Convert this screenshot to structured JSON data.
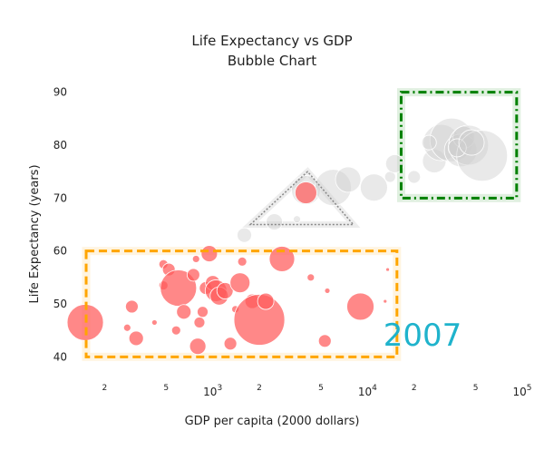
{
  "chart_data": {
    "type": "scatter",
    "title": "Life Expectancy vs GDP",
    "subtitle": "Bubble Chart",
    "xlabel": "GDP per capita (2000 dollars)",
    "ylabel": "Life Expectancy (years)",
    "x_scale": "log",
    "xlim": [
      100,
      100000
    ],
    "ylim": [
      38,
      92
    ],
    "y_ticks": [
      40,
      50,
      60,
      70,
      80,
      90
    ],
    "x_major_ticks": [
      {
        "value": 1000,
        "base": "10",
        "exp": "3"
      },
      {
        "value": 10000,
        "base": "10",
        "exp": "4"
      },
      {
        "value": 100000,
        "base": "10",
        "exp": "5"
      }
    ],
    "x_minor_ticks": [
      {
        "value": 200,
        "label": "2"
      },
      {
        "value": 500,
        "label": "5"
      },
      {
        "value": 2000,
        "label": "2"
      },
      {
        "value": 5000,
        "label": "5"
      },
      {
        "value": 20000,
        "label": "2"
      },
      {
        "value": 50000,
        "label": "5"
      }
    ],
    "annotation": "2007",
    "colors": {
      "highlight": "#ff5a5a",
      "faded": "#cfcfcf",
      "annotation": "#1fb3cc",
      "box_orange": "#ffa500",
      "box_green": "#008000",
      "triangle": "#888888"
    },
    "highlight_regions": [
      {
        "shape": "rect",
        "x": [
          152,
          15500
        ],
        "y": [
          40,
          60
        ],
        "color": "#ffa500",
        "dash": "dash"
      },
      {
        "shape": "rect",
        "x": [
          16500,
          92000
        ],
        "y": [
          70,
          90
        ],
        "color": "#008000",
        "dash": "dashdot"
      },
      {
        "shape": "triangle",
        "x": [
          1750,
          4100,
          8100
        ],
        "y": [
          65,
          75,
          65
        ],
        "color": "#888888",
        "dash": "dot"
      }
    ],
    "series": [
      {
        "group": "highlight",
        "points": [
          {
            "x": 150,
            "y": 46.5,
            "size": 20
          },
          {
            "x": 300,
            "y": 49.5,
            "size": 7
          },
          {
            "x": 320,
            "y": 43.5,
            "size": 8
          },
          {
            "x": 280,
            "y": 45.5,
            "size": 4
          },
          {
            "x": 420,
            "y": 46.5,
            "size": 3
          },
          {
            "x": 480,
            "y": 57.5,
            "size": 5
          },
          {
            "x": 520,
            "y": 56.5,
            "size": 7
          },
          {
            "x": 480,
            "y": 53.5,
            "size": 5
          },
          {
            "x": 600,
            "y": 53,
            "size": 20
          },
          {
            "x": 650,
            "y": 48.5,
            "size": 8
          },
          {
            "x": 580,
            "y": 45,
            "size": 5
          },
          {
            "x": 750,
            "y": 55.5,
            "size": 7
          },
          {
            "x": 780,
            "y": 58.5,
            "size": 4
          },
          {
            "x": 800,
            "y": 42,
            "size": 9
          },
          {
            "x": 820,
            "y": 46.5,
            "size": 6
          },
          {
            "x": 860,
            "y": 48.5,
            "size": 6
          },
          {
            "x": 900,
            "y": 53,
            "size": 7
          },
          {
            "x": 950,
            "y": 59.5,
            "size": 9
          },
          {
            "x": 1000,
            "y": 54,
            "size": 8
          },
          {
            "x": 1050,
            "y": 52.5,
            "size": 12
          },
          {
            "x": 1100,
            "y": 51.5,
            "size": 10
          },
          {
            "x": 1200,
            "y": 52.5,
            "size": 9
          },
          {
            "x": 1300,
            "y": 42.5,
            "size": 7
          },
          {
            "x": 1400,
            "y": 49,
            "size": 4
          },
          {
            "x": 1500,
            "y": 54,
            "size": 11
          },
          {
            "x": 1550,
            "y": 58,
            "size": 5
          },
          {
            "x": 1800,
            "y": 50.5,
            "size": 8
          },
          {
            "x": 2000,
            "y": 47,
            "size": 28
          },
          {
            "x": 2200,
            "y": 50.5,
            "size": 9
          },
          {
            "x": 2800,
            "y": 58.5,
            "size": 14
          },
          {
            "x": 4300,
            "y": 55,
            "size": 4
          },
          {
            "x": 5500,
            "y": 52.5,
            "size": 3
          },
          {
            "x": 5300,
            "y": 43,
            "size": 7
          },
          {
            "x": 9000,
            "y": 49.5,
            "size": 15
          },
          {
            "x": 13000,
            "y": 50.5,
            "size": 2
          },
          {
            "x": 13500,
            "y": 56.5,
            "size": 2
          },
          {
            "x": 4000,
            "y": 71,
            "size": 12
          }
        ]
      },
      {
        "group": "faded",
        "points": [
          {
            "x": 1600,
            "y": 63,
            "size": 8
          },
          {
            "x": 2500,
            "y": 65.5,
            "size": 9
          },
          {
            "x": 3500,
            "y": 66,
            "size": 4
          },
          {
            "x": 4000,
            "y": 71.5,
            "size": 16
          },
          {
            "x": 6000,
            "y": 72,
            "size": 20
          },
          {
            "x": 7500,
            "y": 73.5,
            "size": 14
          },
          {
            "x": 11000,
            "y": 72,
            "size": 15
          },
          {
            "x": 14000,
            "y": 74,
            "size": 6
          },
          {
            "x": 15000,
            "y": 76.5,
            "size": 10
          },
          {
            "x": 20000,
            "y": 74,
            "size": 7
          },
          {
            "x": 27000,
            "y": 77,
            "size": 13
          },
          {
            "x": 30000,
            "y": 80.5,
            "size": 20
          },
          {
            "x": 35000,
            "y": 81,
            "size": 24
          },
          {
            "x": 40000,
            "y": 79,
            "size": 18
          },
          {
            "x": 42000,
            "y": 81.5,
            "size": 12
          },
          {
            "x": 45000,
            "y": 80,
            "size": 22
          },
          {
            "x": 55000,
            "y": 78,
            "size": 28
          },
          {
            "x": 25000,
            "y": 80.5,
            "size": 8
          },
          {
            "x": 38000,
            "y": 79.5,
            "size": 10
          },
          {
            "x": 47000,
            "y": 80.5,
            "size": 14
          }
        ]
      }
    ]
  }
}
